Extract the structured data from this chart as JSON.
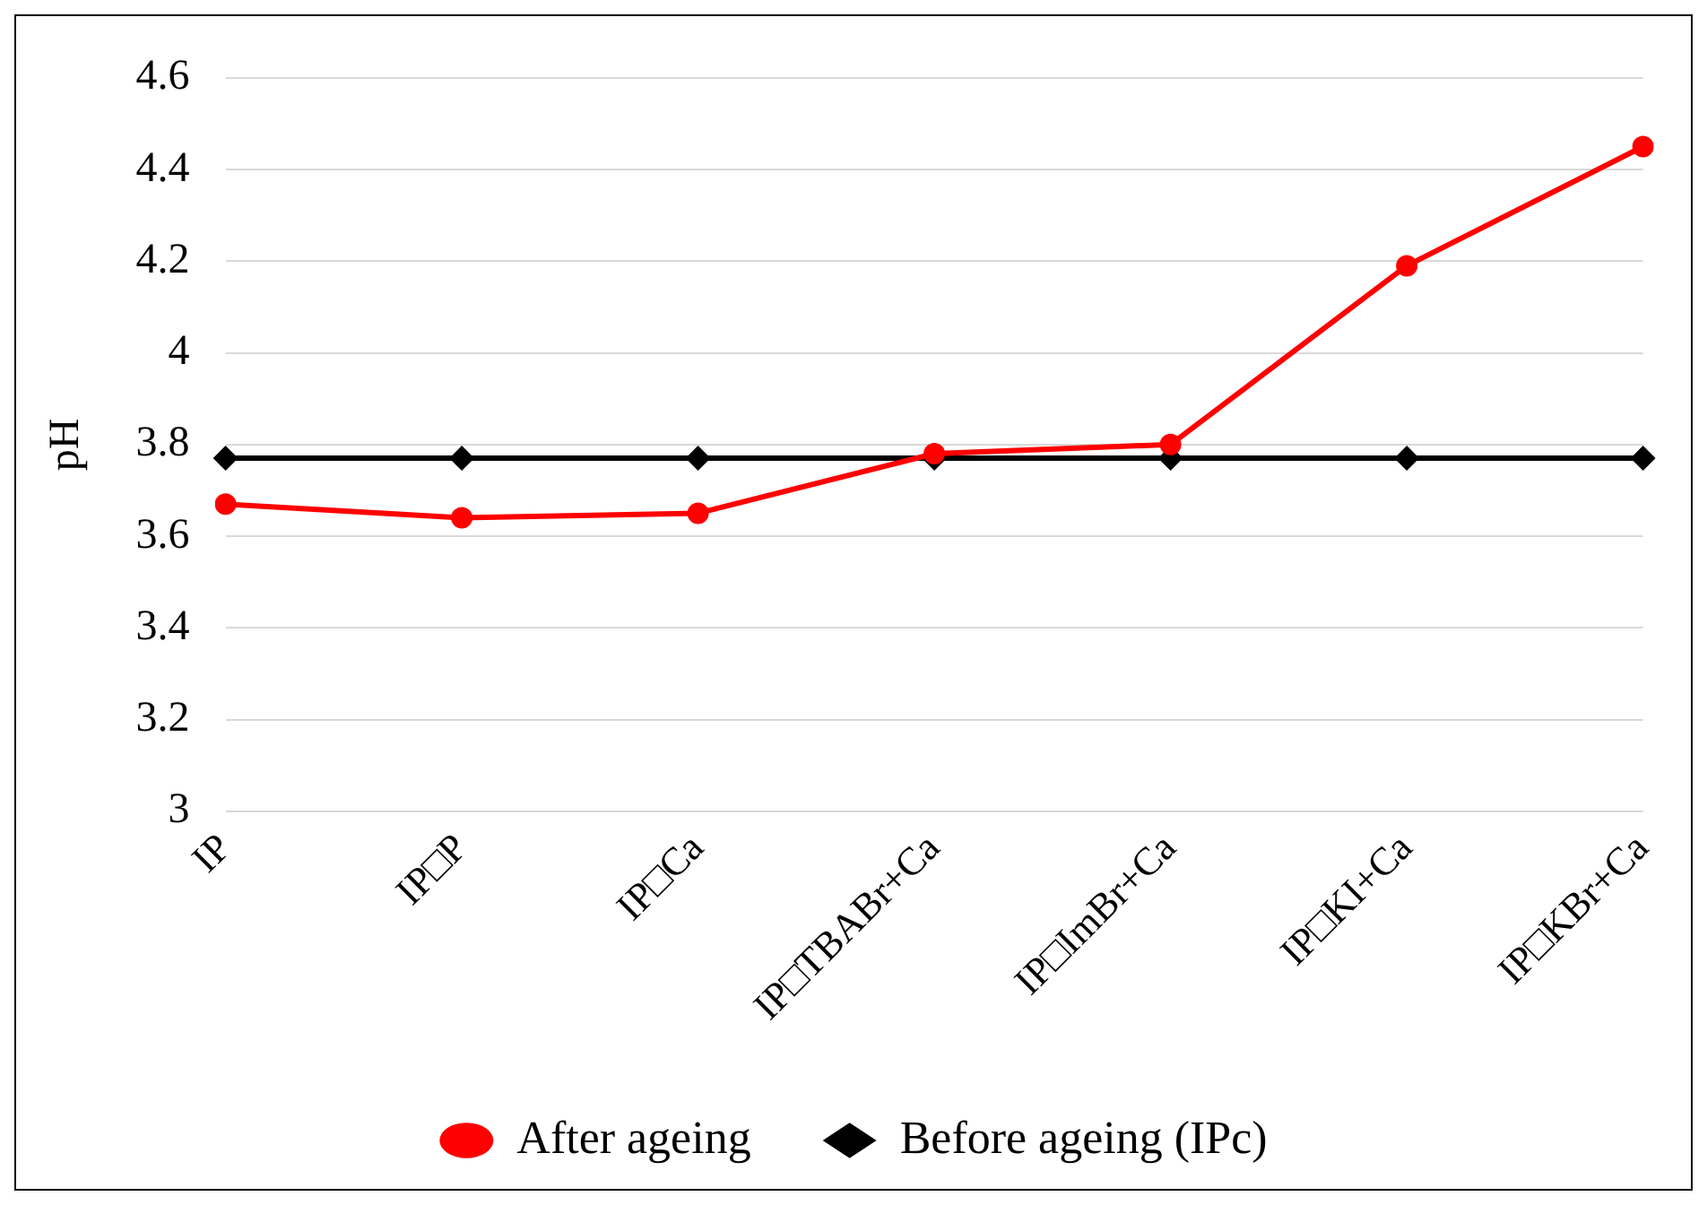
{
  "chart_data": {
    "type": "line",
    "ylabel": "pH",
    "categories": [
      "IP",
      "IP□P",
      "IP□Ca",
      "IP□TBABr+Ca",
      "IP□ImBr+Ca",
      "IP□KI+Ca",
      "IP□KBr+Ca"
    ],
    "series": [
      {
        "name": "Before ageing (IPc)",
        "color": "#000000",
        "marker": "diamond",
        "values": [
          3.77,
          3.77,
          3.77,
          3.77,
          3.77,
          3.77,
          3.77
        ]
      },
      {
        "name": "After ageing",
        "color": "#ff0000",
        "marker": "circle",
        "values": [
          3.67,
          3.64,
          3.65,
          3.78,
          3.8,
          4.19,
          4.45
        ]
      }
    ],
    "ylim": [
      3,
      4.6
    ],
    "yticks": [
      3,
      3.2,
      3.4,
      3.6,
      3.8,
      4,
      4.2,
      4.4,
      4.6
    ],
    "grid": "y",
    "legend": "bottom",
    "line_style": "solid"
  }
}
